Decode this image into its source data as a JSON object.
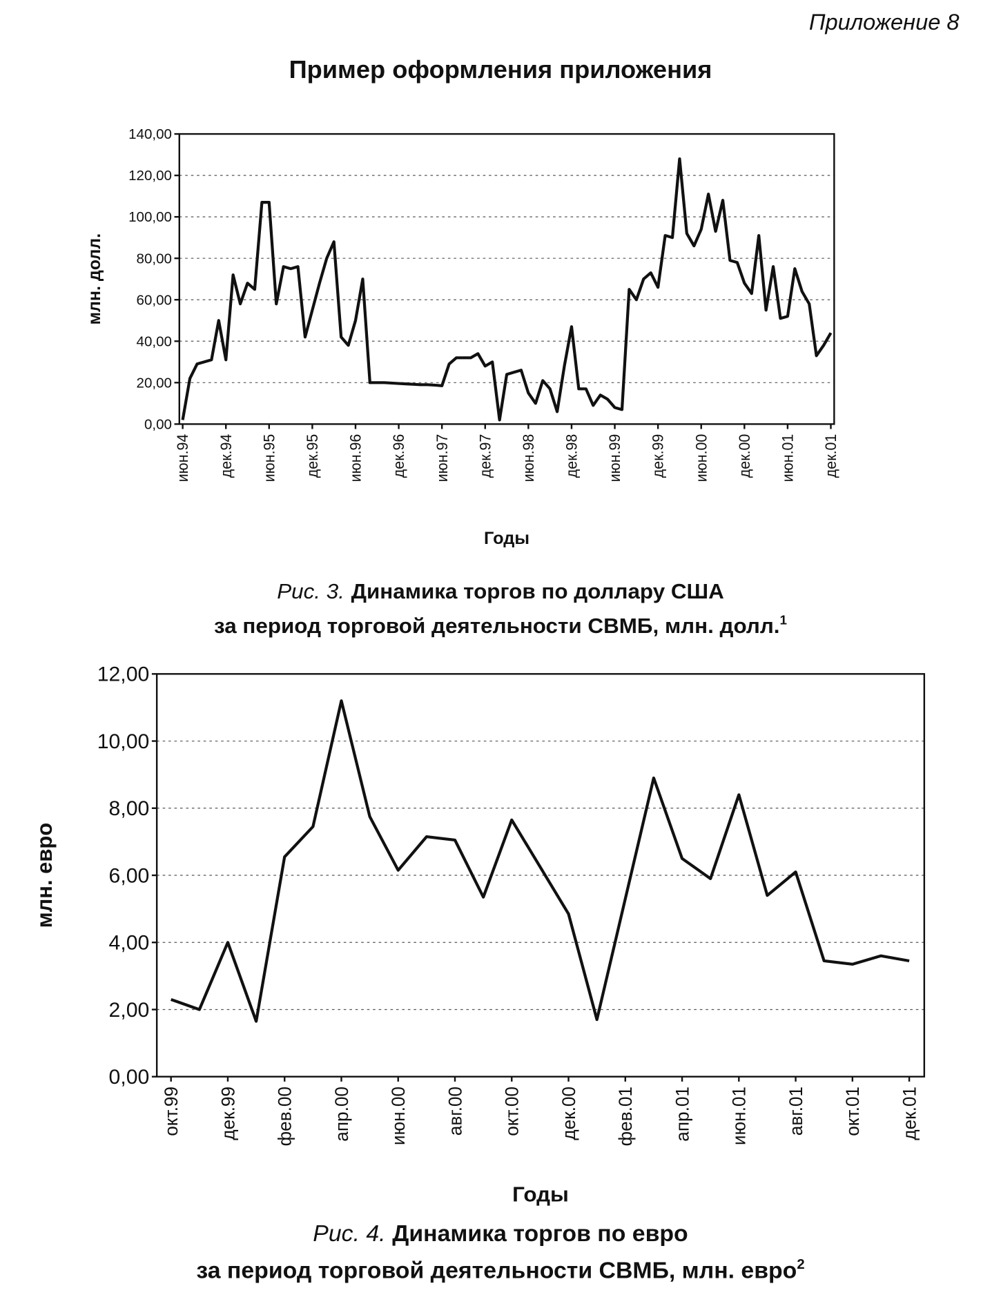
{
  "header": {
    "label": "Приложение 8",
    "title": "Пример оформления приложения"
  },
  "chart_data": [
    {
      "type": "line",
      "ylabel": "млн. долл.",
      "xlabel": "Годы",
      "caption_label": "Рис. 3.",
      "caption": "Динамика торгов по доллару США",
      "caption_line2": "за период торговой деятельности СВМБ, млн. долл.",
      "caption_note": "1",
      "color": "#111111",
      "grid": true,
      "categories": [
        "июн.94",
        null,
        null,
        null,
        null,
        null,
        "дек.94",
        null,
        null,
        null,
        null,
        null,
        "июн.95",
        null,
        null,
        null,
        null,
        null,
        "дек.95",
        null,
        null,
        null,
        null,
        null,
        "июн.96",
        null,
        null,
        null,
        null,
        null,
        "дек.96",
        null,
        null,
        null,
        null,
        null,
        "июн.97",
        null,
        null,
        null,
        null,
        null,
        "дек.97",
        null,
        null,
        null,
        null,
        null,
        "июн.98",
        null,
        null,
        null,
        null,
        null,
        "дек.98",
        null,
        null,
        null,
        null,
        null,
        "июн.99",
        null,
        null,
        null,
        null,
        null,
        "дек.99",
        null,
        null,
        null,
        null,
        null,
        "июн.00",
        null,
        null,
        null,
        null,
        null,
        "дек.00",
        null,
        null,
        null,
        null,
        null,
        "июн.01",
        null,
        null,
        null,
        null,
        null,
        "дек.01"
      ],
      "values": [
        2,
        22,
        29,
        30,
        31,
        50,
        31,
        72,
        58,
        68,
        65,
        107,
        107,
        58,
        76,
        75,
        76,
        42,
        55,
        68,
        80,
        88,
        42,
        38,
        50,
        70,
        20,
        20,
        20,
        19.8,
        19.6,
        19.4,
        19.2,
        19,
        19,
        18.8,
        18.5,
        29,
        32,
        32,
        32,
        34,
        28,
        30,
        2,
        24,
        25,
        26,
        15,
        10,
        21,
        17,
        6,
        28,
        47,
        17,
        17,
        9,
        14,
        12,
        8,
        7,
        65,
        60,
        70,
        73,
        66,
        91,
        90,
        128,
        92,
        86,
        94,
        111,
        93,
        108,
        79,
        78,
        68,
        63,
        91,
        55,
        76,
        51,
        52,
        75,
        64,
        58,
        33,
        38,
        44
      ],
      "ylim": [
        0,
        140
      ],
      "yticks": [
        {
          "value": 0,
          "label": "0,00"
        },
        {
          "value": 20,
          "label": "20,00"
        },
        {
          "value": 40,
          "label": "40,00"
        },
        {
          "value": 60,
          "label": "60,00"
        },
        {
          "value": 80,
          "label": "80,00"
        },
        {
          "value": 100,
          "label": "100,00"
        },
        {
          "value": 120,
          "label": "120,00"
        },
        {
          "value": 140,
          "label": "140,00"
        }
      ]
    },
    {
      "type": "line",
      "ylabel": "млн. евро",
      "xlabel": "Годы",
      "caption_label": "Рис. 4.",
      "caption": "Динамика торгов по евро",
      "caption_line2": "за период торговой деятельности СВМБ, млн. евро",
      "caption_note": "2",
      "color": "#111111",
      "grid": true,
      "categories": [
        "окт.99",
        null,
        "дек.99",
        null,
        "фев.00",
        null,
        "апр.00",
        null,
        "июн.00",
        null,
        "авг.00",
        null,
        "окт.00",
        null,
        "дек.00",
        null,
        "фев.01",
        null,
        "апр.01",
        null,
        "июн.01",
        null,
        "авг.01",
        null,
        "окт.01",
        null,
        "дек.01"
      ],
      "values": [
        2.3,
        2.0,
        4.0,
        1.65,
        6.55,
        7.45,
        11.2,
        7.75,
        6.15,
        7.15,
        7.05,
        5.35,
        7.65,
        6.25,
        4.85,
        1.7,
        5.3,
        8.9,
        6.5,
        5.9,
        8.4,
        5.4,
        6.1,
        3.45,
        3.35,
        3.6,
        3.45
      ],
      "ylim": [
        0,
        12
      ],
      "yticks": [
        {
          "value": 0,
          "label": "0,00"
        },
        {
          "value": 2,
          "label": "2,00"
        },
        {
          "value": 4,
          "label": "4,00"
        },
        {
          "value": 6,
          "label": "6,00"
        },
        {
          "value": 8,
          "label": "8,00"
        },
        {
          "value": 10,
          "label": "10,00"
        },
        {
          "value": 12,
          "label": "12,00"
        }
      ]
    }
  ]
}
